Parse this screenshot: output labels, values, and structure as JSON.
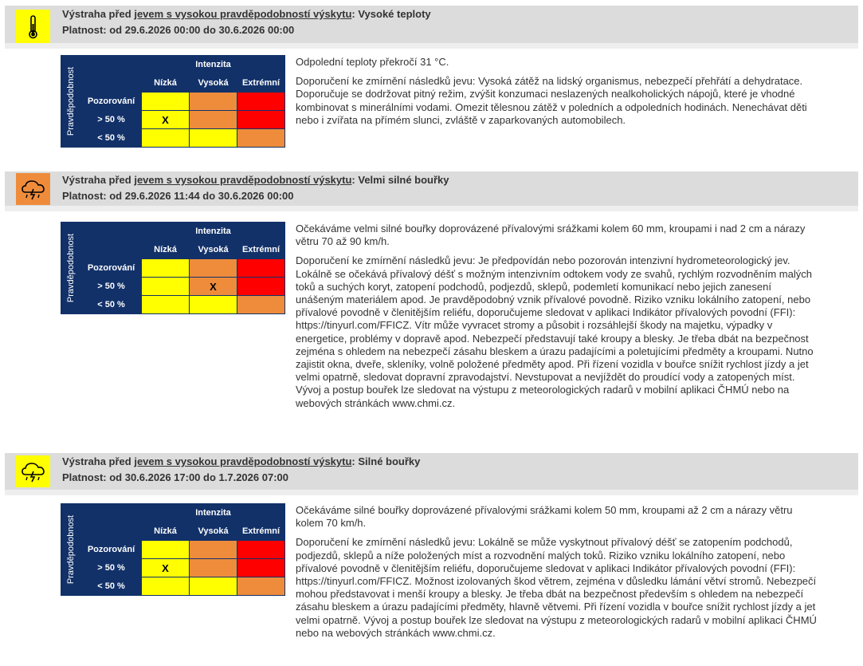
{
  "matrix_labels": {
    "intensity_header": "Intenzita",
    "probability_label": "Pravděpodobnost",
    "col_low": "Nízká",
    "col_high": "Vysoká",
    "col_extreme": "Extrémní",
    "row_observed": "Pozorování",
    "row_gt50": "> 50 %",
    "row_lt50": "< 50 %",
    "mark": "X"
  },
  "colors": {
    "yellow": "#ffff00",
    "orange": "#ee8c3c",
    "red": "#ff0000",
    "navy": "#123169",
    "header_bg": "#dcdcdc"
  },
  "warnings": [
    {
      "icon": "thermometer-icon",
      "icon_bg": "#ffff00",
      "title_prefix": "Výstraha před ",
      "title_link": "jevem s vysokou pravděpodobností výskytu",
      "title_suffix": ": Vysoké teploty",
      "validity": "Platnost: od 29.6.2026 00:00 do 30.6.2026 00:00",
      "marked_cell": "gt50-low",
      "description": "Odpolední teploty překročí 31 °C.",
      "recommendation": "Doporučení ke zmírnění následků jevu: Vysoká zátěž na lidský organismus, nebezpečí přehřátí a dehydratace. Doporučuje se dodržovat pitný režim, zvýšit konzumaci neslazených nealkoholických nápojů, které je vhodné kombinovat s minerálními vodami. Omezit tělesnou zátěž v poledních a odpoledních hodinách. Nenechávat děti nebo i zvířata na přímém slunci, zvláště v zaparkovaných automobilech."
    },
    {
      "icon": "thunderstorm-cloud-icon",
      "icon_bg": "#ee8c3c",
      "title_prefix": "Výstraha před ",
      "title_link": "jevem s vysokou pravděpodobností výskytu",
      "title_suffix": ": Velmi silné bouřky",
      "validity": "Platnost: od 29.6.2026 11:44 do 30.6.2026 00:00",
      "marked_cell": "gt50-high",
      "description": "Očekáváme velmi silné bouřky doprovázené přívalovými srážkami kolem 60 mm, kroupami i nad 2 cm a nárazy větru 70 až 90 km/h.",
      "recommendation": "Doporučení ke zmírnění následků jevu: Je předpovídán nebo pozorován intenzivní hydrometeorologický jev. Lokálně se očekává přívalový déšť s možným intenzivním odtokem vody ze svahů, rychlým rozvodněním malých toků a suchých koryt, zatopení podchodů, podjezdů, sklepů, podemletí komunikací nebo jejich zanesení unášeným materiálem apod. Je pravděpodobný vznik přívalové povodně. Riziko vzniku lokálního zatopení, nebo přívalové povodně v členitějším reliéfu, doporučujeme sledovat v aplikaci Indikátor přívalových povodní (FFI): https://tinyurl.com/FFICZ. Vítr může vyvracet stromy a působit i rozsáhlejší škody na majetku, výpadky v energetice, problémy v dopravě apod. Nebezpečí představují také kroupy a blesky. Je třeba dbát na bezpečnost zejména s ohledem na nebezpečí zásahu bleskem a úrazu padajícími a poletujícími předměty a kroupami. Nutno zajistit okna, dveře, skleníky, volně položené předměty apod. Při řízení vozidla v bouřce snížit rychlost jízdy a jet velmi opatrně, sledovat dopravní zpravodajství. Nevstupovat a nevjíždět do proudící vody a zatopených míst. Vývoj a postup bouřek lze sledovat na výstupu z meteorologických radarů v mobilní aplikaci ČHMÚ nebo na webových stránkách www.chmi.cz."
    },
    {
      "icon": "thunderstorm-cloud-icon",
      "icon_bg": "#ffff00",
      "title_prefix": "Výstraha před ",
      "title_link": "jevem s vysokou pravděpodobností výskytu",
      "title_suffix": ": Silné bouřky",
      "validity": "Platnost: od 30.6.2026 17:00 do 1.7.2026 07:00",
      "marked_cell": "gt50-low",
      "description": "Očekáváme silné bouřky doprovázené přívalovými srážkami kolem 50 mm, kroupami až 2 cm a nárazy větru kolem 70 km/h.",
      "recommendation": "Doporučení ke zmírnění následků jevu: Lokálně se může vyskytnout přívalový déšť se zatopením podchodů, podjezdů, sklepů a níže položených míst a rozvodnění malých toků. Riziko vzniku lokálního zatopení, nebo přívalové povodně v členitějším reliéfu, doporučujeme sledovat v aplikaci Indikátor přívalových povodní (FFI): https://tinyurl.com/FFICZ. Možnost izolovaných škod větrem, zejména v důsledku lámání větví stromů. Nebezpečí mohou představovat i menší kroupy a blesky. Je třeba dbát na bezpečnost především s ohledem na nebezpečí zásahu bleskem a úrazu padajícími předměty, hlavně větvemi. Při řízení vozidla v bouřce snížit rychlost jízdy a jet velmi opatrně. Vývoj a postup bouřek lze sledovat na výstupu z meteorologických radarů v mobilní aplikaci ČHMÚ nebo na webových stránkách www.chmi.cz."
    }
  ]
}
